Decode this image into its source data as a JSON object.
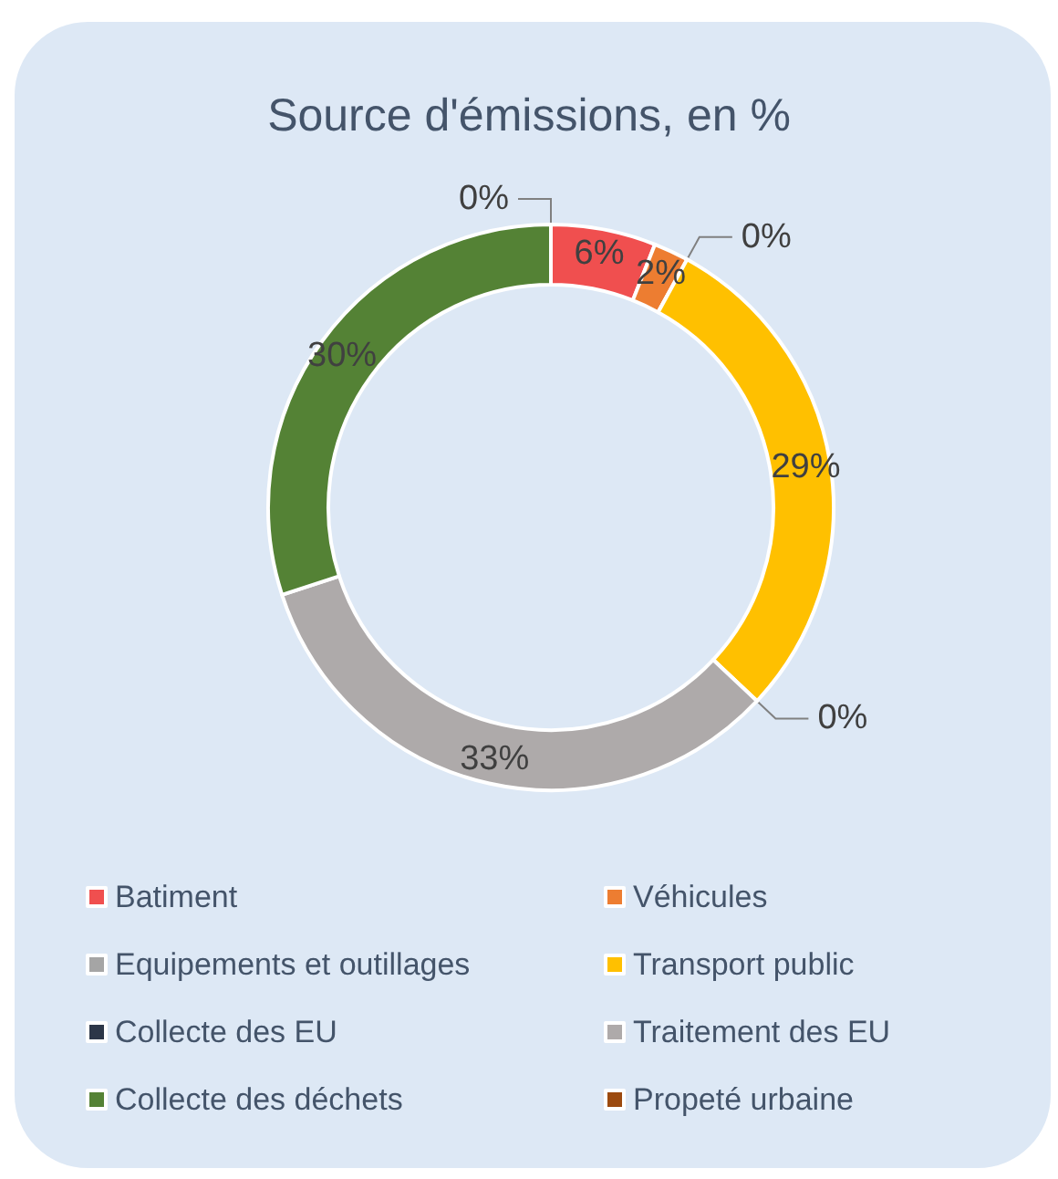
{
  "chart_data": {
    "type": "donut",
    "title": "Source d'émissions, en %",
    "categories": [
      "Batiment",
      "Véhicules",
      "Equipements et outillages",
      "Transport public",
      "Collecte des EU",
      "Traitement des EU",
      "Collecte des déchets",
      "Propeté urbaine"
    ],
    "values": [
      6,
      2,
      0,
      29,
      0,
      33,
      30,
      0
    ],
    "value_labels": [
      "6%",
      "2%",
      "0%",
      "29%",
      "0%",
      "33%",
      "30%",
      "0%"
    ],
    "colors": [
      "#f04f4f",
      "#ed7d31",
      "#a5a5a5",
      "#ffc000",
      "#2c3648",
      "#aeaaaa",
      "#548235",
      "#9c4a0f"
    ],
    "legend": "bottom"
  }
}
